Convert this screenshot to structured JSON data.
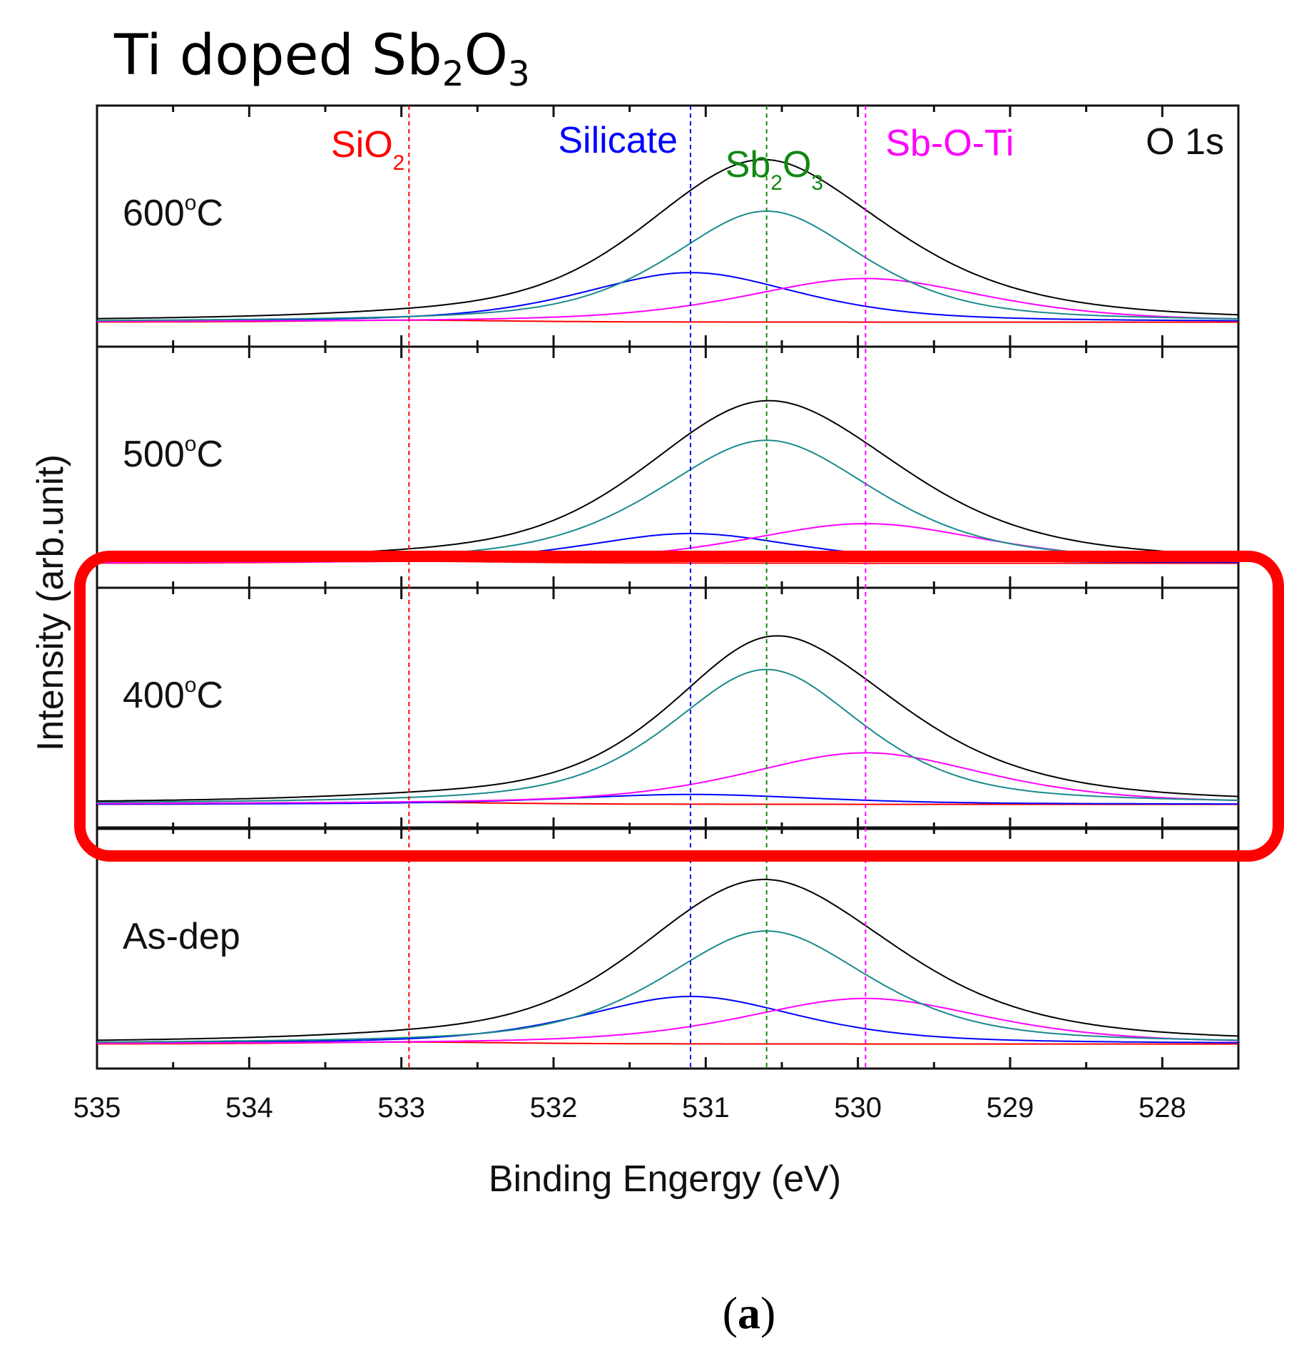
{
  "figure": {
    "title_main": "Ti doped Sb",
    "title_sub1": "2",
    "title_mid": "O",
    "title_sub2": "3",
    "caption_open": "(",
    "caption_letter": "a",
    "caption_close": ")"
  },
  "chart_data": {
    "type": "line",
    "title": "Ti doped Sb2O3",
    "xlabel": "Binding Engergy (eV)",
    "ylabel": "Intensity (arb.unit)",
    "xlim": [
      535,
      527.5
    ],
    "x_ticks": [
      535,
      534,
      533,
      532,
      531,
      530,
      529,
      528
    ],
    "corner_label": "O 1s",
    "reference_lines": [
      {
        "name": "SiO2",
        "label": "SiO",
        "sub": "2",
        "x": 532.95,
        "color": "#ff0000"
      },
      {
        "name": "Silicate",
        "label": "Silicate",
        "sub": "",
        "x": 531.1,
        "color": "#0000ff"
      },
      {
        "name": "Sb2O3",
        "label": "Sb",
        "sub": "2",
        "label2": "O",
        "sub2": "3",
        "x": 530.6,
        "color": "#118811"
      },
      {
        "name": "Sb-O-Ti",
        "label": "Sb-O-Ti",
        "sub": "",
        "x": 529.95,
        "color": "#ff00ff"
      }
    ],
    "series_colors": {
      "Envelope": "#000000",
      "SiO2": "#ff0000",
      "Silicate": "#0000ff",
      "Sb2O3": "#1a8a8a",
      "Sb-O-Ti": "#ff00ff"
    },
    "panels": [
      {
        "label": "600",
        "unit": "C",
        "degree": "o",
        "highlighted": false,
        "baseline": 0.03,
        "peaks": {
          "SiO2": {
            "center": 532.95,
            "height": 0.01,
            "fwhm": 1.6
          },
          "Silicate": {
            "center": 531.1,
            "height": 0.25,
            "fwhm": 1.7
          },
          "Sb2O3": {
            "center": 530.6,
            "height": 0.56,
            "fwhm": 1.5
          },
          "Sb-O-Ti": {
            "center": 529.95,
            "height": 0.22,
            "fwhm": 1.9
          }
        },
        "envelope_peak": 0.85
      },
      {
        "label": "500",
        "unit": "C",
        "degree": "o",
        "highlighted": false,
        "baseline": 0.03,
        "peaks": {
          "SiO2": {
            "center": 532.95,
            "height": 0.01,
            "fwhm": 1.6
          },
          "Silicate": {
            "center": 531.1,
            "height": 0.15,
            "fwhm": 1.7
          },
          "Sb2O3": {
            "center": 530.6,
            "height": 0.62,
            "fwhm": 1.7
          },
          "Sb-O-Ti": {
            "center": 529.95,
            "height": 0.2,
            "fwhm": 1.9
          }
        },
        "envelope_peak": 0.85
      },
      {
        "label": "400",
        "unit": "C",
        "degree": "o",
        "highlighted": true,
        "baseline": 0.03,
        "peaks": {
          "SiO2": {
            "center": 532.95,
            "height": 0.01,
            "fwhm": 1.6
          },
          "Silicate": {
            "center": 531.1,
            "height": 0.05,
            "fwhm": 2.0
          },
          "Sb2O3": {
            "center": 530.6,
            "height": 0.68,
            "fwhm": 1.5
          },
          "Sb-O-Ti": {
            "center": 529.95,
            "height": 0.26,
            "fwhm": 1.9
          }
        },
        "envelope_peak": 0.88
      },
      {
        "label": "As-dep",
        "unit": "",
        "degree": "",
        "highlighted": false,
        "baseline": 0.03,
        "peaks": {
          "SiO2": {
            "center": 532.95,
            "height": 0.01,
            "fwhm": 1.6
          },
          "Silicate": {
            "center": 531.1,
            "height": 0.24,
            "fwhm": 1.7
          },
          "Sb2O3": {
            "center": 530.6,
            "height": 0.57,
            "fwhm": 1.6
          },
          "Sb-O-Ti": {
            "center": 529.95,
            "height": 0.23,
            "fwhm": 1.9
          }
        },
        "envelope_peak": 0.86
      }
    ]
  }
}
